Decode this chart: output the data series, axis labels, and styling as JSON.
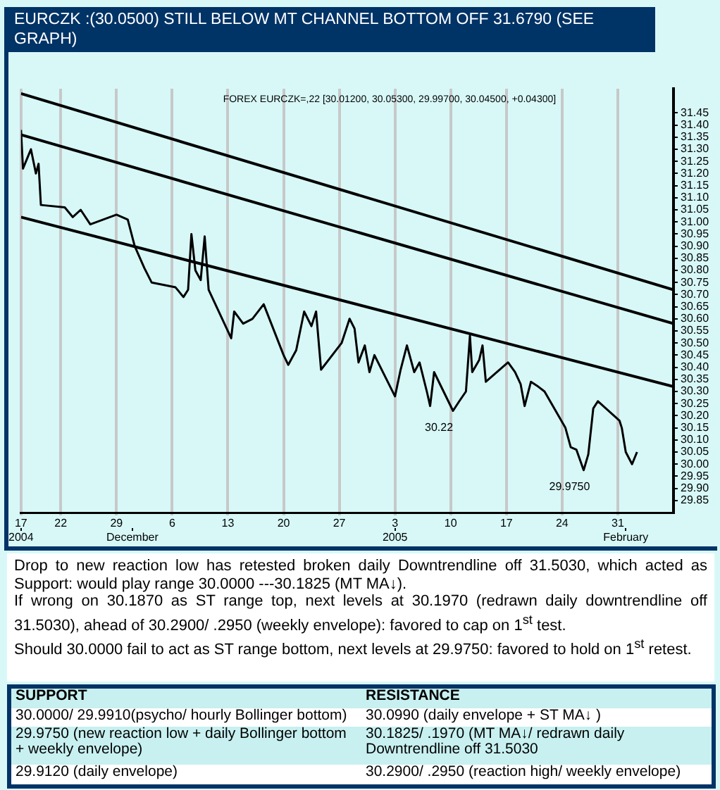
{
  "chart_data": {
    "type": "line",
    "title": "EURCZK :(30.0500) STILL BELOW  MT CHANNEL BOTTOM OFF 31.6790  (SEE GRAPH)",
    "subtitle": "FOREX EURCZK=,22 [30.01200, 30.05300, 29.99700, 30.04500, +0.04300]",
    "series": [
      {
        "color": "#000000",
        "x": [
          "2004-11-17T00:00",
          "2004-11-17T06:00",
          "2004-11-18T00:00",
          "2004-11-18T06:00",
          "2004-11-18T21:00",
          "2004-11-19T05:00",
          "2004-11-19T12:00",
          "2004-11-22T12:00",
          "2004-11-23T12:00",
          "2004-11-24T12:00",
          "2004-11-25T17:00",
          "2004-11-29T00:00",
          "2004-11-30T10:00",
          "2004-12-01T07:00",
          "2004-12-02T12:00",
          "2004-12-03T10:00",
          "2004-12-06T10:00",
          "2004-12-07T10:00",
          "2004-12-08T00:00",
          "2004-12-08T10:00",
          "2004-12-08T22:00",
          "2004-12-09T14:00",
          "2004-12-10T02:00",
          "2004-12-10T14:00",
          "2004-12-13T10:00",
          "2004-12-13T19:00",
          "2004-12-14T22:00",
          "2004-12-16T02:00",
          "2004-12-17T12:00",
          "2004-12-20T00:00",
          "2004-12-20T14:00",
          "2004-12-21T14:00",
          "2004-12-22T02:00",
          "2004-12-22T14:00",
          "2004-12-23T12:00",
          "2004-12-24T02:00",
          "2004-12-24T17:00",
          "2004-12-27T07:00",
          "2004-12-28T07:00",
          "2004-12-28T22:00",
          "2004-12-29T10:00",
          "2004-12-30T05:00",
          "2004-12-30T19:00",
          "2004-12-31T10:00",
          "2005-01-03T00:00",
          "2005-01-03T17:00",
          "2005-01-04T12:00",
          "2005-01-05T10:00",
          "2005-01-06T02:00",
          "2005-01-07T00:00",
          "2005-01-07T10:00",
          "2005-01-07T22:00",
          "2005-01-10T07:00",
          "2005-01-11T02:00",
          "2005-01-11T22:00",
          "2005-01-12T10:00",
          "2005-01-12T17:00",
          "2005-01-13T14:00",
          "2005-01-14T00:00",
          "2005-01-14T10:00",
          "2005-01-17T05:00",
          "2005-01-18T02:00",
          "2005-01-18T19:00",
          "2005-01-19T07:00",
          "2005-01-20T02:00",
          "2005-01-21T00:00",
          "2005-01-21T19:00",
          "2005-01-24T10:00",
          "2005-01-25T02:00",
          "2005-01-25T19:00",
          "2005-01-26T17:00",
          "2005-01-27T07:00",
          "2005-01-27T22:00",
          "2005-01-28T12:00",
          "2005-01-31T05:00",
          "2005-01-31T12:00",
          "2005-02-01T00:00",
          "2005-02-01T19:00",
          "2005-02-02T10:00"
        ],
        "values": [
          31.38,
          31.22,
          31.28,
          31.3,
          31.2,
          31.24,
          31.07,
          31.06,
          31.02,
          31.05,
          30.99,
          31.03,
          31.01,
          30.9,
          30.81,
          30.75,
          30.73,
          30.69,
          30.72,
          30.95,
          30.8,
          30.76,
          30.94,
          30.72,
          30.52,
          30.63,
          30.58,
          30.6,
          30.66,
          30.45,
          30.41,
          30.47,
          30.55,
          30.63,
          30.57,
          30.63,
          30.39,
          30.5,
          30.6,
          30.56,
          30.42,
          30.49,
          30.38,
          30.45,
          30.28,
          30.39,
          30.49,
          30.38,
          30.42,
          30.3,
          30.24,
          30.38,
          30.22,
          30.26,
          30.3,
          30.53,
          30.38,
          30.43,
          30.49,
          30.34,
          30.42,
          30.38,
          30.33,
          30.24,
          30.34,
          30.32,
          30.3,
          30.15,
          30.07,
          30.06,
          29.975,
          30.04,
          30.23,
          30.26,
          30.18,
          30.15,
          30.05,
          30.0,
          30.05
        ]
      },
      {
        "color": "#000000",
        "x": [
          "2004-11-17T00:00",
          "2005-02-07T00:00"
        ],
        "values": [
          31.53,
          30.72
        ]
      },
      {
        "color": "#000000",
        "x": [
          "2004-11-17T00:00",
          "2005-02-07T00:00"
        ],
        "values": [
          31.36,
          30.58
        ]
      },
      {
        "color": "#000000",
        "x": [
          "2004-11-17T00:00",
          "2005-02-07T00:00"
        ],
        "values": [
          31.02,
          30.32
        ]
      }
    ],
    "xlim": [
      "2004-11-17T00:00",
      "2005-02-07T00:00"
    ],
    "xticks": [
      {
        "value": "2004-11-17",
        "label": "17"
      },
      {
        "value": "2004-11-22",
        "label": "22"
      },
      {
        "value": "2004-11-29",
        "label": "29"
      },
      {
        "value": "2004-12-06",
        "label": "6"
      },
      {
        "value": "2004-12-13",
        "label": "13"
      },
      {
        "value": "2004-12-20",
        "label": "20"
      },
      {
        "value": "2004-12-27",
        "label": "27"
      },
      {
        "value": "2005-01-03",
        "label": "3"
      },
      {
        "value": "2005-01-10",
        "label": "10"
      },
      {
        "value": "2005-01-17",
        "label": "17"
      },
      {
        "value": "2005-01-24",
        "label": "24"
      },
      {
        "value": "2005-01-31",
        "label": "31"
      }
    ],
    "x2lim": [
      "2004-11-17T00:00",
      "2005-02-07T00:00"
    ],
    "x2ticks": [
      {
        "value": "2004-11-17",
        "label": "2004"
      },
      {
        "value": "2004-12-01",
        "label": "December"
      },
      {
        "value": "2005-01-03",
        "label": "2005"
      },
      {
        "value": "2005-02-01",
        "label": "February"
      }
    ],
    "ylim": [
      29.8,
      31.55
    ],
    "yticks": [
      29.85,
      {
        "value": 29.9,
        "label": "29.90"
      },
      29.95,
      {
        "value": 30,
        "label": "30.00"
      },
      30.05,
      {
        "value": 30.1,
        "label": "30.10"
      },
      30.15,
      {
        "value": 30.2,
        "label": "30.20"
      },
      30.25,
      {
        "value": 30.3,
        "label": "30.30"
      },
      30.35,
      {
        "value": 30.4,
        "label": "30.40"
      },
      30.45,
      {
        "value": 30.5,
        "label": "30.50"
      },
      30.55,
      {
        "value": 30.6,
        "label": "30.60"
      },
      30.65,
      {
        "value": 30.7,
        "label": "30.70"
      },
      30.75,
      {
        "value": 30.8,
        "label": "30.80"
      },
      30.85,
      {
        "value": 30.9,
        "label": "30.90"
      },
      30.95,
      {
        "value": 31,
        "label": "31.00"
      },
      31.05,
      {
        "value": 31.1,
        "label": "31.10"
      },
      31.15,
      {
        "value": 31.2,
        "label": "31.20"
      },
      31.25,
      {
        "value": 31.3,
        "label": "31.30"
      },
      31.35,
      {
        "value": 31.4,
        "label": "31.40"
      },
      31.45
    ],
    "grid": "x",
    "legend": false,
    "marker": "none",
    "annotations": [
      {
        "text": "30.22",
        "x": "2005-01-10T07:00",
        "y": 30.22
      },
      {
        "text": "29.9750",
        "x": "2005-01-26T17:00",
        "y": 29.975
      },
      "Drop to new reaction low has retested broken daily Downtrendline off 31.5030, which acted as Support: would play range 30.0000 ---30.1825 (MT MA↓).",
      "If wrong on 30.1870 as ST range top, next levels at 30.1970 (redrawn daily downtrendline off 31.5030), ahead of 30.2900/ .2950 (weekly envelope): favored to cap on 1$^{st}$ test.",
      "Should 30.0000 fail to act as ST range bottom, next levels at 29.9750: favored to hold on 1$^{st}$ retest.",
      "SUPPORT",
      "RESISTANCE",
      "30.0000/ 29.9910(psycho/ hourly  Bollinger bottom)",
      "30.0990  (daily envelope + ST MA↓ )",
      "29.9750 (new reaction low + daily  Bollinger bottom  + weekly envelope)",
      "30.1825/ .1970 (MT  MA↓/ redrawn daily Downtrendline off 31.5030",
      "29.9120 (daily envelope)",
      "30.2900/ .2950 (reaction high/ weekly envelope)"
    ]
  }
}
